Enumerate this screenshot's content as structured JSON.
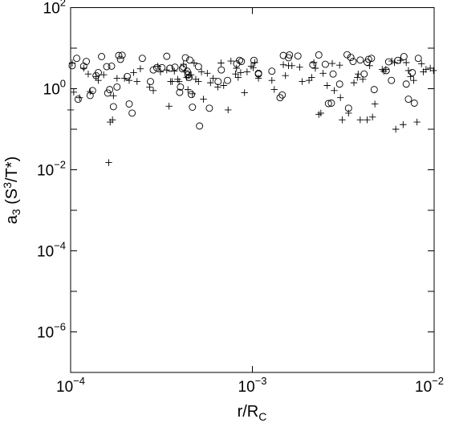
{
  "chart_data": {
    "type": "scatter",
    "x_scale": "log",
    "y_scale": "log",
    "xlim": [
      0.0001,
      0.01
    ],
    "ylim": [
      1e-07,
      100
    ],
    "xlabel": {
      "base": "r/R",
      "sub": "C"
    },
    "ylabel": {
      "pre": "a",
      "sub": "3",
      "mid": " (S",
      "sup": "3",
      "post": "/T*)"
    },
    "x_ticks": [
      {
        "value": 0.0001,
        "base": "10",
        "exp": "−4"
      },
      {
        "value": 0.001,
        "base": "10",
        "exp": "−3"
      },
      {
        "value": 0.01,
        "base": "10",
        "exp": "−2"
      }
    ],
    "y_ticks": [
      {
        "value": 100,
        "base": "10",
        "exp": "2"
      },
      {
        "value": 1,
        "base": "10",
        "exp": "0"
      },
      {
        "value": 0.01,
        "base": "10",
        "exp": "−2"
      },
      {
        "value": 0.0001,
        "base": "10",
        "exp": "−4"
      },
      {
        "value": 1e-06,
        "base": "10",
        "exp": "−6"
      }
    ],
    "grid": false,
    "series": [
      {
        "marker": "circle",
        "points": [
          [
            0.000102,
            3.7
          ],
          [
            0.000108,
            5.6
          ],
          [
            0.00011,
            0.55
          ],
          [
            0.000118,
            3.6
          ],
          [
            0.000122,
            4.7
          ],
          [
            0.000128,
            0.68
          ],
          [
            0.000132,
            0.9
          ],
          [
            0.000138,
            2.1
          ],
          [
            0.000142,
            2.5
          ],
          [
            0.000148,
            6.2
          ],
          [
            0.000158,
            3.5
          ],
          [
            0.00016,
            0.78
          ],
          [
            0.000164,
            0.95
          ],
          [
            0.000168,
            3.6
          ],
          [
            0.000172,
            0.36
          ],
          [
            0.00018,
            1.1
          ],
          [
            0.000184,
            6.6
          ],
          [
            0.000188,
            5.3
          ],
          [
            0.000192,
            6.7
          ],
          [
            0.000205,
            2.0
          ],
          [
            0.00021,
            0.42
          ],
          [
            0.000218,
            0.25
          ],
          [
            0.000248,
            5.6
          ],
          [
            0.000275,
            1.5
          ],
          [
            0.000285,
            2.9
          ],
          [
            0.000298,
            3.3
          ],
          [
            0.000318,
            3.3
          ],
          [
            0.000338,
            6.3
          ],
          [
            0.000352,
            3.2
          ],
          [
            0.000375,
            3.4
          ],
          [
            0.000398,
            0.81
          ],
          [
            0.000402,
            1.1
          ],
          [
            0.000412,
            3.1
          ],
          [
            0.000418,
            3.4
          ],
          [
            0.000428,
            5.8
          ],
          [
            0.000438,
            2.7
          ],
          [
            0.000442,
            2.2
          ],
          [
            0.000448,
            1.9
          ],
          [
            0.000452,
            5.1
          ],
          [
            0.000462,
            0.72
          ],
          [
            0.000468,
            0.35
          ],
          [
            0.000505,
            3.5
          ],
          [
            0.000512,
            0.12
          ],
          [
            0.00058,
            0.33
          ],
          [
            0.000648,
            1.5
          ],
          [
            0.000675,
            2.9
          ],
          [
            0.00073,
            1.6
          ],
          [
            0.00082,
            4.1
          ],
          [
            0.00085,
            5.0
          ],
          [
            0.00087,
            4.7
          ],
          [
            0.00102,
            5.0
          ],
          [
            0.00108,
            2.3
          ],
          [
            0.00108,
            2.4
          ],
          [
            0.00128,
            2.7
          ],
          [
            0.00142,
            0.6
          ],
          [
            0.00146,
            0.7
          ],
          [
            0.00148,
            6.6
          ],
          [
            0.00158,
            5.8
          ],
          [
            0.0016,
            6.8
          ],
          [
            0.00178,
            6.4
          ],
          [
            0.00215,
            3.9
          ],
          [
            0.00232,
            6.8
          ],
          [
            0.00252,
            4.0
          ],
          [
            0.00262,
            0.43
          ],
          [
            0.00272,
            0.44
          ],
          [
            0.00278,
            2.3
          ],
          [
            0.00302,
            1.3
          ],
          [
            0.00332,
            6.9
          ],
          [
            0.00338,
            0.33
          ],
          [
            0.00348,
            5.9
          ],
          [
            0.00358,
            4.7
          ],
          [
            0.00392,
            5.1
          ],
          [
            0.00412,
            2.3
          ],
          [
            0.00428,
            4.5
          ],
          [
            0.00436,
            5.3
          ],
          [
            0.00452,
            5.6
          ],
          [
            0.00468,
            0.95
          ],
          [
            0.00545,
            2.8
          ],
          [
            0.00562,
            4.6
          ],
          [
            0.00582,
            1.6
          ],
          [
            0.00632,
            5.0
          ],
          [
            0.00682,
            6.2
          ],
          [
            0.00702,
            1.3
          ],
          [
            0.00722,
            0.55
          ],
          [
            0.00758,
            2.5
          ],
          [
            0.00778,
            0.44
          ],
          [
            0.00818,
            5.6
          ]
        ]
      },
      {
        "marker": "plus",
        "points": [
          [
            0.0001,
            0.3
          ],
          [
            0.000102,
            4.3
          ],
          [
            0.000104,
            0.82
          ],
          [
            0.000112,
            0.6
          ],
          [
            0.000118,
            3.2
          ],
          [
            0.000125,
            2.3
          ],
          [
            0.000128,
            0.85
          ],
          [
            0.000138,
            2.0
          ],
          [
            0.000142,
            1.6
          ],
          [
            0.000152,
            2.2
          ],
          [
            0.000162,
            0.015
          ],
          [
            0.000165,
            0.15
          ],
          [
            0.00017,
            0.17
          ],
          [
            0.000172,
            0.67
          ],
          [
            0.00018,
            1.8
          ],
          [
            0.000198,
            1.8
          ],
          [
            0.00021,
            1.6
          ],
          [
            0.000222,
            2.5
          ],
          [
            0.000232,
            1.5
          ],
          [
            0.000242,
            3.1
          ],
          [
            0.000272,
            1.1
          ],
          [
            0.000285,
            0.9
          ],
          [
            0.000302,
            3.6
          ],
          [
            0.000312,
            2.6
          ],
          [
            0.000338,
            2.9
          ],
          [
            0.000348,
            0.37
          ],
          [
            0.000355,
            1.5
          ],
          [
            0.000362,
            1.5
          ],
          [
            0.000372,
            2.7
          ],
          [
            0.000388,
            1.7
          ],
          [
            0.000395,
            1.5
          ],
          [
            0.000418,
            4.0
          ],
          [
            0.000428,
            2.8
          ],
          [
            0.000435,
            1.9
          ],
          [
            0.000442,
            0.95
          ],
          [
            0.000448,
            2.1
          ],
          [
            0.00046,
            2.2
          ],
          [
            0.000468,
            0.75
          ],
          [
            0.000478,
            4.3
          ],
          [
            0.000488,
            1.7
          ],
          [
            0.000505,
            1.5
          ],
          [
            0.000525,
            2.6
          ],
          [
            0.000538,
            0.55
          ],
          [
            0.000565,
            2.4
          ],
          [
            0.000588,
            1.4
          ],
          [
            0.000608,
            1.8
          ],
          [
            0.000645,
            1.1
          ],
          [
            0.000672,
            4.3
          ],
          [
            0.000695,
            1.2
          ],
          [
            0.000735,
            0.3
          ],
          [
            0.000762,
            4.8
          ],
          [
            0.000808,
            2.3
          ],
          [
            0.000818,
            3.2
          ],
          [
            0.000835,
            1.9
          ],
          [
            0.000862,
            2.5
          ],
          [
            0.000905,
            0.8
          ],
          [
            0.000935,
            2.6
          ],
          [
            0.000985,
            3.6
          ],
          [
            0.00101,
            3.3
          ],
          [
            0.00103,
            4.4
          ],
          [
            0.00108,
            1.8
          ],
          [
            0.00128,
            1.6
          ],
          [
            0.00132,
            0.96
          ],
          [
            0.00148,
            3.9
          ],
          [
            0.00152,
            2.1
          ],
          [
            0.00158,
            3.7
          ],
          [
            0.00165,
            3.7
          ],
          [
            0.00182,
            3.4
          ],
          [
            0.00188,
            1.5
          ],
          [
            0.00205,
            1.6
          ],
          [
            0.00212,
            1.9
          ],
          [
            0.00218,
            4.4
          ],
          [
            0.00222,
            3.2
          ],
          [
            0.00232,
            0.23
          ],
          [
            0.00238,
            0.25
          ],
          [
            0.00245,
            2.4
          ],
          [
            0.00258,
            1.2
          ],
          [
            0.00275,
            4.2
          ],
          [
            0.00282,
            0.9
          ],
          [
            0.00302,
            3.8
          ],
          [
            0.00305,
            0.6
          ],
          [
            0.00312,
            0.17
          ],
          [
            0.00338,
            0.25
          ],
          [
            0.00362,
            1.4
          ],
          [
            0.00378,
            1.9
          ],
          [
            0.00382,
            2.3
          ],
          [
            0.00392,
            0.17
          ],
          [
            0.00405,
            1.7
          ],
          [
            0.00428,
            0.17
          ],
          [
            0.00442,
            3.7
          ],
          [
            0.00458,
            0.2
          ],
          [
            0.00472,
            0.42
          ],
          [
            0.00518,
            3.0
          ],
          [
            0.00528,
            2.7
          ],
          [
            0.00542,
            3.0
          ],
          [
            0.00585,
            4.8
          ],
          [
            0.00605,
            4.4
          ],
          [
            0.00615,
            0.1
          ],
          [
            0.00652,
            5.0
          ],
          [
            0.00675,
            0.13
          ],
          [
            0.00702,
            4.4
          ],
          [
            0.00722,
            2.8
          ],
          [
            0.00742,
            2.0
          ],
          [
            0.00772,
            1.6
          ],
          [
            0.00805,
            0.15
          ],
          [
            0.00852,
            4.1
          ],
          [
            0.00872,
            2.6
          ],
          [
            0.00902,
            3.0
          ],
          [
            0.00952,
            3.2
          ],
          [
            0.00992,
            2.8
          ]
        ]
      }
    ]
  }
}
